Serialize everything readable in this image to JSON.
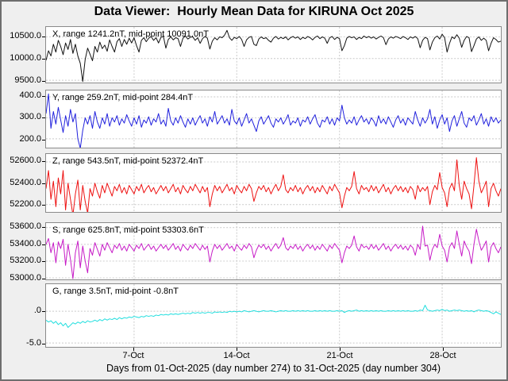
{
  "window": {
    "title": "Data Viewer:  Hourly Mean Data for KIRUNA Oct 2025"
  },
  "chart_data": {
    "type": "line",
    "title": "Data Viewer:  Hourly Mean Data for KIRUNA Oct 2025",
    "xlabel": "Days from 01-Oct-2025 (day number 274) to 31-Oct-2025 (day number 304)",
    "x_range_days": [
      0,
      31
    ],
    "sample_hours": 4,
    "grid": true,
    "x_ticks": [
      {
        "day": 6,
        "label": "7-Oct"
      },
      {
        "day": 13,
        "label": "14-Oct"
      },
      {
        "day": 20,
        "label": "21-Oct"
      },
      {
        "day": 27,
        "label": "28-Oct"
      }
    ],
    "panels": [
      {
        "id": "X",
        "label": "X, range 1241.2nT, mid-point 10091.0nT",
        "color": "#111111",
        "ylim": [
          9447,
          10728
        ],
        "yticks": [
          {
            "value": 10500,
            "label": "10500.0"
          },
          {
            "value": 10000,
            "label": "10000.0"
          },
          {
            "value": 9500,
            "label": "9500.0"
          }
        ],
        "values": [
          9960,
          10180,
          10060,
          10330,
          10150,
          10420,
          10280,
          10090,
          10360,
          10210,
          10440,
          10120,
          10330,
          10060,
          9890,
          9470,
          9980,
          10240,
          10100,
          9950,
          10280,
          10150,
          10380,
          10230,
          10310,
          10170,
          10430,
          10280,
          10150,
          10390,
          10460,
          10280,
          10440,
          10330,
          10470,
          10360,
          10480,
          10300,
          10150,
          10420,
          10480,
          10390,
          10470,
          10510,
          10420,
          10480,
          10360,
          10490,
          10510,
          10240,
          10440,
          10500,
          10430,
          10480,
          10460,
          10280,
          10470,
          10520,
          10450,
          10490,
          10500,
          10420,
          10480,
          10350,
          10460,
          10510,
          10470,
          10220,
          10400,
          10480,
          10430,
          10500,
          10480,
          10540,
          10650,
          10480,
          10420,
          10490,
          10460,
          10510,
          10440,
          10280,
          10430,
          10490,
          10510,
          10330,
          10300,
          10450,
          10500,
          10460,
          10480,
          10420,
          10380,
          10470,
          10510,
          10450,
          10490,
          10460,
          10500,
          10430,
          10480,
          10510,
          10470,
          10500,
          10440,
          10490,
          10460,
          10510,
          10480,
          10430,
          10490,
          10520,
          10460,
          10500,
          10470,
          10350,
          10480,
          10510,
          10440,
          10490,
          10460,
          10180,
          10300,
          10470,
          10510,
          10480,
          10500,
          10440,
          10490,
          10460,
          10520,
          10480,
          10510,
          10470,
          10500,
          10450,
          10490,
          10520,
          10480,
          10320,
          10450,
          10500,
          10470,
          10510,
          10490,
          10460,
          10510,
          10480,
          10440,
          10500,
          10470,
          10510,
          10460,
          10250,
          10420,
          10490,
          10460,
          10200,
          10380,
          10480,
          10520,
          10450,
          10560,
          10480,
          10150,
          10350,
          10500,
          10460,
          10550,
          10470,
          10260,
          10420,
          10510,
          10480,
          10160,
          10300,
          10450,
          10500,
          10420,
          10470,
          10420,
          10180,
          10350,
          10480,
          10440,
          10380,
          10400
        ]
      },
      {
        "id": "Y",
        "label": "Y, range 259.2nT, mid-point 284.4nT",
        "color": "#2020dd",
        "ylim": [
          158,
          430
        ],
        "yticks": [
          {
            "value": 400,
            "label": "400.0"
          },
          {
            "value": 300,
            "label": "300.0"
          },
          {
            "value": 200,
            "label": "200.0"
          }
        ],
        "values": [
          320,
          414,
          250,
          330,
          270,
          350,
          290,
          230,
          310,
          260,
          340,
          280,
          320,
          200,
          155,
          240,
          300,
          270,
          310,
          250,
          330,
          280,
          250,
          300,
          270,
          320,
          260,
          300,
          280,
          310,
          265,
          295,
          275,
          315,
          285,
          260,
          300,
          270,
          310,
          255,
          290,
          275,
          305,
          265,
          295,
          280,
          320,
          270,
          290,
          260,
          345,
          285,
          265,
          300,
          275,
          310,
          280,
          255,
          295,
          270,
          300,
          265,
          290,
          310,
          275,
          295,
          260,
          305,
          280,
          330,
          270,
          290,
          310,
          275,
          295,
          265,
          340,
          285,
          270,
          300,
          260,
          290,
          320,
          275,
          295,
          265,
          235,
          285,
          305,
          270,
          290,
          310,
          275,
          255,
          295,
          280,
          300,
          270,
          290,
          315,
          265,
          285,
          275,
          300,
          260,
          290,
          280,
          305,
          270,
          295,
          315,
          275,
          255,
          290,
          280,
          305,
          270,
          295,
          265,
          300,
          285,
          360,
          300,
          270,
          290,
          275,
          305,
          265,
          290,
          310,
          280,
          295,
          270,
          300,
          285,
          260,
          310,
          275,
          295,
          270,
          305,
          280,
          255,
          290,
          310,
          275,
          295,
          265,
          300,
          285,
          270,
          330,
          290,
          260,
          300,
          275,
          295,
          340,
          270,
          305,
          250,
          290,
          315,
          270,
          300,
          235,
          285,
          310,
          260,
          295,
          330,
          275,
          255,
          300,
          285,
          310,
          265,
          290,
          320,
          270,
          295,
          260,
          305,
          280,
          300,
          275,
          290
        ]
      },
      {
        "id": "Z",
        "label": "Z, range 543.5nT, mid-point 52372.4nT",
        "color": "#ee1111",
        "ylim": [
          52131,
          52675
        ],
        "yticks": [
          {
            "value": 52600,
            "label": "52600.0"
          },
          {
            "value": 52400,
            "label": "52400.0"
          },
          {
            "value": 52200,
            "label": "52200.0"
          }
        ],
        "values": [
          52350,
          52520,
          52250,
          52420,
          52180,
          52450,
          52300,
          52520,
          52150,
          52400,
          52250,
          52101,
          52300,
          52430,
          52150,
          52380,
          52230,
          52120,
          52350,
          52280,
          52400,
          52320,
          52260,
          52380,
          52310,
          52400,
          52340,
          52280,
          52370,
          52330,
          52390,
          52310,
          52360,
          52300,
          52380,
          52340,
          52300,
          52370,
          52330,
          52390,
          52310,
          52350,
          52380,
          52320,
          52360,
          52300,
          52340,
          52380,
          52330,
          52370,
          52310,
          52350,
          52390,
          52320,
          52360,
          52300,
          52380,
          52340,
          52310,
          52370,
          52330,
          52390,
          52350,
          52310,
          52370,
          52320,
          52360,
          52180,
          52300,
          52380,
          52330,
          52370,
          52310,
          52350,
          52390,
          52330,
          52360,
          52300,
          52380,
          52340,
          52310,
          52370,
          52330,
          52390,
          52350,
          52230,
          52310,
          52370,
          52340,
          52380,
          52320,
          52360,
          52300,
          52350,
          52390,
          52330,
          52370,
          52480,
          52340,
          52310,
          52360,
          52330,
          52380,
          52320,
          52360,
          52300,
          52350,
          52380,
          52330,
          52370,
          52310,
          52360,
          52320,
          52380,
          52340,
          52300,
          52370,
          52330,
          52390,
          52350,
          52310,
          52170,
          52280,
          52360,
          52330,
          52370,
          52510,
          52350,
          52300,
          52380,
          52340,
          52360,
          52320,
          52380,
          52330,
          52370,
          52310,
          52350,
          52390,
          52320,
          52360,
          52300,
          52350,
          52380,
          52330,
          52370,
          52320,
          52360,
          52310,
          52370,
          52340,
          52250,
          52380,
          52320,
          52360,
          52330,
          52370,
          52200,
          52320,
          52380,
          52340,
          52500,
          52360,
          52310,
          52180,
          52350,
          52400,
          52330,
          52620,
          52380,
          52250,
          52420,
          52350,
          52300,
          52160,
          52380,
          52640,
          52420,
          52310,
          52360,
          52420,
          52180,
          52350,
          52400,
          52330,
          52280,
          52350
        ]
      },
      {
        "id": "S",
        "label": "S, range 625.8nT, mid-point 53303.6nT",
        "color": "#c61ac6",
        "ylim": [
          52982,
          53654
        ],
        "yticks": [
          {
            "value": 53600,
            "label": "53600.0"
          },
          {
            "value": 53400,
            "label": "53400.0"
          },
          {
            "value": 53200,
            "label": "53200.0"
          },
          {
            "value": 53000,
            "label": "53000.0"
          }
        ],
        "values": [
          53400,
          53470,
          53300,
          53420,
          53180,
          53430,
          53350,
          53460,
          53150,
          53400,
          53220,
          52991,
          53300,
          53440,
          53120,
          53380,
          53200,
          53060,
          53350,
          53270,
          53420,
          53340,
          53260,
          53400,
          53330,
          53420,
          53360,
          53300,
          53390,
          53350,
          53410,
          53330,
          53380,
          53320,
          53400,
          53360,
          53320,
          53390,
          53350,
          53410,
          53330,
          53370,
          53400,
          53340,
          53380,
          53320,
          53360,
          53400,
          53350,
          53390,
          53330,
          53370,
          53410,
          53340,
          53380,
          53320,
          53400,
          53360,
          53330,
          53390,
          53350,
          53410,
          53370,
          53330,
          53390,
          53340,
          53380,
          53190,
          53320,
          53400,
          53350,
          53390,
          53330,
          53370,
          53410,
          53350,
          53380,
          53320,
          53400,
          53360,
          53330,
          53390,
          53350,
          53410,
          53370,
          53240,
          53330,
          53390,
          53360,
          53400,
          53340,
          53380,
          53320,
          53370,
          53410,
          53350,
          53390,
          53480,
          53360,
          53330,
          53380,
          53350,
          53400,
          53340,
          53380,
          53320,
          53370,
          53400,
          53350,
          53390,
          53330,
          53380,
          53340,
          53400,
          53360,
          53320,
          53390,
          53350,
          53410,
          53370,
          53330,
          53180,
          53300,
          53380,
          53350,
          53390,
          53500,
          53370,
          53320,
          53400,
          53360,
          53380,
          53340,
          53400,
          53350,
          53390,
          53330,
          53370,
          53410,
          53340,
          53380,
          53320,
          53370,
          53400,
          53350,
          53390,
          53340,
          53380,
          53330,
          53390,
          53360,
          53270,
          53400,
          53340,
          53617,
          53380,
          53390,
          53210,
          53340,
          53400,
          53360,
          53520,
          53380,
          53330,
          53190,
          53370,
          53420,
          53350,
          53560,
          53400,
          53260,
          53440,
          53370,
          53320,
          53170,
          53400,
          53580,
          53440,
          53330,
          53380,
          53440,
          53190,
          53370,
          53420,
          53350,
          53300,
          53370
        ]
      },
      {
        "id": "G",
        "label": "G, range 3.5nT, mid-point -0.8nT",
        "color": "#1fdede",
        "ylim": [
          -5.61,
          4.27
        ],
        "yticks": [
          {
            "value": 0,
            "label": ".0"
          },
          {
            "value": -5,
            "label": "-5.0"
          }
        ],
        "values": [
          -1.4,
          -1.7,
          -1.5,
          -1.9,
          -1.6,
          -2.1,
          -1.8,
          -2.3,
          -1.9,
          -2.55,
          -2.2,
          -1.8,
          -2.0,
          -1.7,
          -1.9,
          -1.6,
          -1.8,
          -1.5,
          -1.7,
          -1.6,
          -1.4,
          -1.6,
          -1.3,
          -1.5,
          -1.2,
          -1.4,
          -1.2,
          -1.3,
          -1.1,
          -1.3,
          -1.0,
          -1.2,
          -1.0,
          -1.1,
          -0.9,
          -1.0,
          -0.8,
          -0.9,
          -1.0,
          -0.8,
          -0.9,
          -0.7,
          -0.8,
          -0.7,
          -0.8,
          -0.6,
          -0.7,
          -0.5,
          -0.6,
          -0.5,
          -0.6,
          -0.4,
          -0.5,
          -0.4,
          -0.5,
          -0.4,
          -0.3,
          -0.4,
          -0.3,
          -0.4,
          -0.2,
          -0.3,
          -0.2,
          -0.3,
          -0.2,
          -0.3,
          -0.2,
          -0.2,
          -0.3,
          -0.1,
          -0.2,
          -0.1,
          -0.2,
          -0.1,
          -0.2,
          0.0,
          -0.1,
          0.0,
          -0.1,
          0.0,
          -0.1,
          0.1,
          0.0,
          -0.1,
          0.0,
          0.1,
          0.0,
          -0.1,
          0.0,
          0.1,
          0.0,
          0.0,
          0.1,
          0.0,
          -0.1,
          0.0,
          0.1,
          0.0,
          0.1,
          0.0,
          0.0,
          0.1,
          0.0,
          0.1,
          0.0,
          0.1,
          0.0,
          0.1,
          0.0,
          0.0,
          0.1,
          0.0,
          0.1,
          0.0,
          0.1,
          0.0,
          0.1,
          0.0,
          0.0,
          0.1,
          0.0,
          0.1,
          -0.2,
          0.0,
          0.1,
          0.0,
          0.1,
          0.2,
          0.0,
          0.1,
          0.0,
          0.1,
          0.0,
          0.1,
          0.0,
          0.1,
          0.0,
          0.1,
          0.0,
          0.0,
          0.1,
          0.0,
          0.1,
          0.0,
          0.1,
          0.0,
          0.1,
          0.0,
          0.1,
          0.0,
          0.0,
          0.1,
          0.0,
          0.2,
          0.1,
          0.95,
          0.2,
          0.1,
          0.0,
          0.1,
          0.2,
          0.1,
          0.3,
          0.1,
          0.2,
          0.0,
          0.1,
          0.2,
          0.1,
          0.2,
          0.1,
          0.0,
          0.1,
          0.0,
          0.1,
          -0.1,
          0.1,
          0.2,
          0.1,
          0.0,
          0.1,
          0.0,
          -0.2,
          -0.4,
          -0.1,
          -0.3,
          -0.5
        ]
      }
    ]
  }
}
